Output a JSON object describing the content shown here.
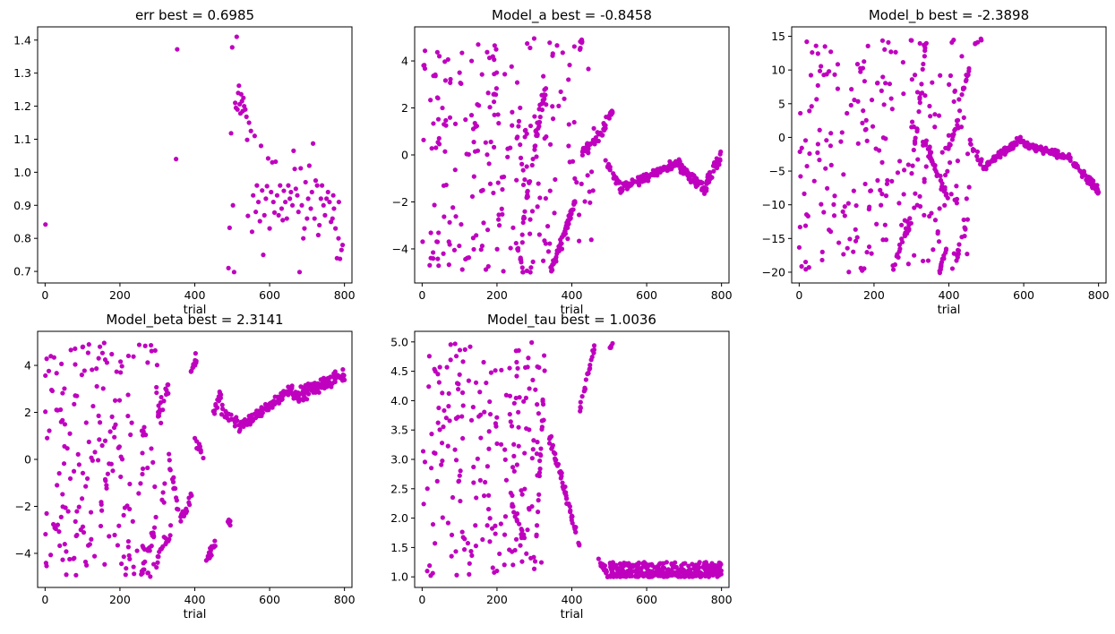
{
  "figure": {
    "marker_color": "#bf00bf",
    "panels": [
      {
        "title": "err  best = 0.6985",
        "xlabel": "trial",
        "ylabel": "",
        "xlim": [
          -20,
          820
        ],
        "ylim": [
          0.665,
          1.44
        ],
        "xticks": [
          0,
          200,
          400,
          600,
          800
        ],
        "yticks": [
          0.7,
          0.8,
          0.9,
          1.0,
          1.1,
          1.2,
          1.3,
          1.4
        ],
        "ytick_labels": [
          "0.7",
          "0.8",
          "0.9",
          "1.0",
          "1.1",
          "1.2",
          "1.3",
          "1.4"
        ]
      },
      {
        "title": "Model_a  best = -0.8458",
        "xlabel": "trial",
        "ylabel": "",
        "xlim": [
          -20,
          820
        ],
        "ylim": [
          -5.45,
          5.45
        ],
        "xticks": [
          0,
          200,
          400,
          600,
          800
        ],
        "yticks": [
          -4,
          -2,
          0,
          2,
          4
        ],
        "ytick_labels": [
          "−4",
          "−2",
          "0",
          "2",
          "4"
        ]
      },
      {
        "title": "Model_b  best = -2.3898",
        "xlabel": "trial",
        "ylabel": "",
        "xlim": [
          -20,
          820
        ],
        "ylim": [
          -21.6,
          16.4
        ],
        "xticks": [
          0,
          200,
          400,
          600,
          800
        ],
        "yticks": [
          -20,
          -15,
          -10,
          -5,
          0,
          5,
          10,
          15
        ],
        "ytick_labels": [
          "−20",
          "−15",
          "−10",
          "−5",
          "0",
          "5",
          "10",
          "15"
        ]
      },
      {
        "title": "Model_beta  best = 2.3141",
        "xlabel": "trial",
        "ylabel": "",
        "xlim": [
          -20,
          820
        ],
        "ylim": [
          -5.45,
          5.45
        ],
        "xticks": [
          0,
          200,
          400,
          600,
          800
        ],
        "yticks": [
          -4,
          -2,
          0,
          2,
          4
        ],
        "ytick_labels": [
          "−4",
          "−2",
          "0",
          "2",
          "4"
        ]
      },
      {
        "title": "Model_tau  best = 1.0036",
        "xlabel": "trial",
        "ylabel": "",
        "xlim": [
          -20,
          820
        ],
        "ylim": [
          0.82,
          5.18
        ],
        "xticks": [
          0,
          200,
          400,
          600,
          800
        ],
        "yticks": [
          1.0,
          1.5,
          2.0,
          2.5,
          3.0,
          3.5,
          4.0,
          4.5,
          5.0
        ],
        "ytick_labels": [
          "1.0",
          "1.5",
          "2.0",
          "2.5",
          "3.0",
          "3.5",
          "4.0",
          "4.5",
          "5.0"
        ]
      }
    ]
  },
  "chart_data": [
    {
      "type": "scatter",
      "title": "err  best = 0.6985",
      "xlabel": "trial",
      "ylabel": "",
      "xlim": [
        -20,
        820
      ],
      "ylim": [
        0.665,
        1.44
      ],
      "grid": false,
      "color": "#bf00bf",
      "points": [
        [
          1,
          0.842
        ],
        [
          350,
          1.04
        ],
        [
          353,
          1.372
        ],
        [
          490,
          0.71
        ],
        [
          493,
          0.832
        ],
        [
          497,
          1.118
        ],
        [
          500,
          1.378
        ],
        [
          502,
          0.9
        ],
        [
          505,
          0.698
        ],
        [
          508,
          1.21
        ],
        [
          510,
          1.195
        ],
        [
          512,
          1.41
        ],
        [
          514,
          1.19
        ],
        [
          516,
          1.24
        ],
        [
          518,
          1.262
        ],
        [
          520,
          1.206
        ],
        [
          522,
          1.178
        ],
        [
          524,
          1.236
        ],
        [
          526,
          1.215
        ],
        [
          528,
          1.185
        ],
        [
          530,
          1.225
        ],
        [
          532,
          1.2
        ],
        [
          535,
          1.19
        ],
        [
          538,
          1.168
        ],
        [
          540,
          1.098
        ],
        [
          542,
          0.868
        ],
        [
          545,
          1.15
        ],
        [
          550,
          1.125
        ],
        [
          553,
          0.82
        ],
        [
          556,
          0.93
        ],
        [
          560,
          1.11
        ],
        [
          563,
          0.88
        ],
        [
          566,
          0.96
        ],
        [
          570,
          0.91
        ],
        [
          574,
          0.852
        ],
        [
          577,
          1.08
        ],
        [
          580,
          0.945
        ],
        [
          583,
          0.75
        ],
        [
          586,
          0.87
        ],
        [
          590,
          0.92
        ],
        [
          593,
          0.958
        ],
        [
          596,
          1.042
        ],
        [
          600,
          0.83
        ],
        [
          604,
          0.94
        ],
        [
          607,
          1.03
        ],
        [
          610,
          0.91
        ],
        [
          613,
          0.878
        ],
        [
          616,
          1.032
        ],
        [
          620,
          0.93
        ],
        [
          624,
          0.87
        ],
        [
          628,
          0.96
        ],
        [
          632,
          0.89
        ],
        [
          635,
          0.855
        ],
        [
          638,
          0.944
        ],
        [
          642,
          0.91
        ],
        [
          646,
          0.86
        ],
        [
          650,
          0.96
        ],
        [
          654,
          0.92
        ],
        [
          657,
          0.94
        ],
        [
          661,
          0.9
        ],
        [
          664,
          1.065
        ],
        [
          667,
          1.01
        ],
        [
          670,
          0.95
        ],
        [
          674,
          0.93
        ],
        [
          677,
          0.88
        ],
        [
          680,
          0.698
        ],
        [
          683,
          1.012
        ],
        [
          686,
          0.9
        ],
        [
          690,
          0.8
        ],
        [
          693,
          0.83
        ],
        [
          696,
          0.97
        ],
        [
          700,
          0.86
        ],
        [
          703,
          0.92
        ],
        [
          706,
          1.02
        ],
        [
          710,
          0.89
        ],
        [
          713,
          0.94
        ],
        [
          716,
          1.087
        ],
        [
          720,
          0.86
        ],
        [
          723,
          0.975
        ],
        [
          727,
          0.96
        ],
        [
          730,
          0.81
        ],
        [
          733,
          0.84
        ],
        [
          737,
          0.92
        ],
        [
          740,
          0.96
        ],
        [
          744,
          0.9
        ],
        [
          748,
          0.87
        ],
        [
          752,
          0.92
        ],
        [
          756,
          0.94
        ],
        [
          760,
          0.91
        ],
        [
          764,
          0.85
        ],
        [
          768,
          0.86
        ],
        [
          772,
          0.89
        ],
        [
          776,
          0.83
        ],
        [
          780,
          0.74
        ],
        [
          784,
          0.8
        ],
        [
          788,
          0.738
        ],
        [
          792,
          0.765
        ],
        [
          795,
          0.78
        ],
        [
          785,
          0.91
        ],
        [
          770,
          0.93
        ]
      ]
    },
    {
      "type": "scatter",
      "title": "Model_a  best = -0.8458",
      "xlabel": "trial",
      "ylabel": "",
      "xlim": [
        -20,
        820
      ],
      "ylim": [
        -5.45,
        5.45
      ],
      "grid": false,
      "color": "#bf00bf",
      "generated": true,
      "segments": [
        {
          "x0": 0,
          "x1": 460,
          "kind": "uniform",
          "lo": -5,
          "hi": 5,
          "n": 230,
          "seed": 11
        },
        {
          "x0": 250,
          "x1": 270,
          "kind": "trend",
          "y0": -3.6,
          "y1": -4.9,
          "noise": 0.2,
          "n": 12,
          "seed": 12
        },
        {
          "x0": 265,
          "x1": 320,
          "kind": "trend",
          "y0": -3.4,
          "y1": 2.6,
          "noise": 0.3,
          "n": 28,
          "seed": 13
        },
        {
          "x0": 300,
          "x1": 335,
          "kind": "trend",
          "y0": 0.2,
          "y1": 3.4,
          "noise": 0.3,
          "n": 18,
          "seed": 14
        },
        {
          "x0": 345,
          "x1": 400,
          "kind": "trend",
          "y0": -4.9,
          "y1": -2.4,
          "noise": 0.25,
          "n": 40,
          "seed": 15
        },
        {
          "x0": 380,
          "x1": 410,
          "kind": "trend",
          "y0": -3.4,
          "y1": -1.8,
          "noise": 0.25,
          "n": 22,
          "seed": 16
        },
        {
          "x0": 420,
          "x1": 430,
          "kind": "trend",
          "y0": 4.4,
          "y1": 5.0,
          "noise": 0.1,
          "n": 6,
          "seed": 17
        },
        {
          "x0": 425,
          "x1": 490,
          "kind": "trend",
          "y0": 0.0,
          "y1": 1.1,
          "noise": 0.3,
          "n": 36,
          "seed": 18
        },
        {
          "x0": 485,
          "x1": 510,
          "kind": "trend",
          "y0": 1.3,
          "y1": 1.9,
          "noise": 0.2,
          "n": 14,
          "seed": 19
        },
        {
          "x0": 490,
          "x1": 530,
          "kind": "trend",
          "y0": -0.2,
          "y1": -1.4,
          "noise": 0.2,
          "n": 22,
          "seed": 20
        },
        {
          "x0": 530,
          "x1": 690,
          "kind": "trend",
          "y0": -1.4,
          "y1": -0.3,
          "noise": 0.25,
          "n": 110,
          "seed": 21
        },
        {
          "x0": 690,
          "x1": 760,
          "kind": "trend",
          "y0": -0.5,
          "y1": -1.5,
          "noise": 0.3,
          "n": 60,
          "seed": 22
        },
        {
          "x0": 760,
          "x1": 800,
          "kind": "trend",
          "y0": -1.2,
          "y1": 0.0,
          "noise": 0.3,
          "n": 40,
          "seed": 23
        }
      ]
    },
    {
      "type": "scatter",
      "title": "Model_b  best = -2.3898",
      "xlabel": "trial",
      "ylabel": "",
      "xlim": [
        -20,
        820
      ],
      "ylim": [
        -21.6,
        16.4
      ],
      "grid": false,
      "color": "#bf00bf",
      "generated": true,
      "segments": [
        {
          "x0": 0,
          "x1": 460,
          "kind": "uniform",
          "lo": -20,
          "hi": 15,
          "n": 230,
          "seed": 31
        },
        {
          "x0": 250,
          "x1": 300,
          "kind": "trend",
          "y0": -19.5,
          "y1": -12,
          "noise": 1.2,
          "n": 24,
          "seed": 32
        },
        {
          "x0": 300,
          "x1": 340,
          "kind": "trend",
          "y0": -6,
          "y1": 14.5,
          "noise": 1.2,
          "n": 22,
          "seed": 33
        },
        {
          "x0": 330,
          "x1": 395,
          "kind": "trend",
          "y0": 0,
          "y1": -9,
          "noise": 1.2,
          "n": 40,
          "seed": 34
        },
        {
          "x0": 375,
          "x1": 395,
          "kind": "trend",
          "y0": -20,
          "y1": -16,
          "noise": 0.7,
          "n": 16,
          "seed": 35
        },
        {
          "x0": 420,
          "x1": 445,
          "kind": "trend",
          "y0": -18,
          "y1": -13.5,
          "noise": 0.8,
          "n": 14,
          "seed": 36
        },
        {
          "x0": 395,
          "x1": 425,
          "kind": "trend",
          "y0": -3,
          "y1": 3,
          "noise": 1.0,
          "n": 14,
          "seed": 37
        },
        {
          "x0": 425,
          "x1": 455,
          "kind": "trend",
          "y0": 5,
          "y1": 10,
          "noise": 0.8,
          "n": 14,
          "seed": 38
        },
        {
          "x0": 470,
          "x1": 490,
          "kind": "trend",
          "y0": 13.8,
          "y1": 14.6,
          "noise": 0.3,
          "n": 6,
          "seed": 39
        },
        {
          "x0": 455,
          "x1": 500,
          "kind": "trend",
          "y0": -0.5,
          "y1": -5,
          "noise": 0.8,
          "n": 24,
          "seed": 40
        },
        {
          "x0": 500,
          "x1": 600,
          "kind": "trend",
          "y0": -4,
          "y1": 0,
          "noise": 0.7,
          "n": 70,
          "seed": 41
        },
        {
          "x0": 600,
          "x1": 720,
          "kind": "trend",
          "y0": -1,
          "y1": -3,
          "noise": 0.6,
          "n": 90,
          "seed": 42
        },
        {
          "x0": 720,
          "x1": 800,
          "kind": "trend",
          "y0": -3,
          "y1": -8,
          "noise": 0.8,
          "n": 60,
          "seed": 43
        }
      ]
    },
    {
      "type": "scatter",
      "title": "Model_beta  best = 2.3141",
      "xlabel": "trial",
      "ylabel": "",
      "xlim": [
        -20,
        820
      ],
      "ylim": [
        -5.45,
        5.45
      ],
      "grid": false,
      "color": "#bf00bf",
      "generated": true,
      "segments": [
        {
          "x0": 0,
          "x1": 320,
          "kind": "uniform",
          "lo": -5,
          "hi": 5,
          "n": 200,
          "seed": 51
        },
        {
          "x0": 255,
          "x1": 300,
          "kind": "trend",
          "y0": -5,
          "y1": -2.5,
          "noise": 0.4,
          "n": 20,
          "seed": 52
        },
        {
          "x0": 300,
          "x1": 330,
          "kind": "trend",
          "y0": 1.8,
          "y1": 3.0,
          "noise": 0.4,
          "n": 18,
          "seed": 53
        },
        {
          "x0": 290,
          "x1": 340,
          "kind": "trend",
          "y0": -4.6,
          "y1": -2.8,
          "noise": 0.4,
          "n": 18,
          "seed": 54
        },
        {
          "x0": 330,
          "x1": 360,
          "kind": "trend",
          "y0": 0.2,
          "y1": -2.5,
          "noise": 0.4,
          "n": 14,
          "seed": 55
        },
        {
          "x0": 360,
          "x1": 395,
          "kind": "trend",
          "y0": -2.6,
          "y1": -1.5,
          "noise": 0.3,
          "n": 18,
          "seed": 56
        },
        {
          "x0": 385,
          "x1": 410,
          "kind": "trend",
          "y0": 3.5,
          "y1": 4.6,
          "noise": 0.3,
          "n": 14,
          "seed": 57
        },
        {
          "x0": 400,
          "x1": 430,
          "kind": "trend",
          "y0": 0.8,
          "y1": -0.2,
          "noise": 0.3,
          "n": 12,
          "seed": 58
        },
        {
          "x0": 430,
          "x1": 460,
          "kind": "trend",
          "y0": -4.3,
          "y1": -3.4,
          "noise": 0.3,
          "n": 16,
          "seed": 59
        },
        {
          "x0": 445,
          "x1": 470,
          "kind": "trend",
          "y0": 1.8,
          "y1": 2.8,
          "noise": 0.3,
          "n": 14,
          "seed": 60
        },
        {
          "x0": 480,
          "x1": 500,
          "kind": "trend",
          "y0": -2.8,
          "y1": -2.6,
          "noise": 0.2,
          "n": 6,
          "seed": 61
        },
        {
          "x0": 470,
          "x1": 520,
          "kind": "trend",
          "y0": 2.2,
          "y1": 1.4,
          "noise": 0.3,
          "n": 20,
          "seed": 62
        },
        {
          "x0": 520,
          "x1": 660,
          "kind": "trend",
          "y0": 1.4,
          "y1": 3.0,
          "noise": 0.25,
          "n": 110,
          "seed": 63
        },
        {
          "x0": 660,
          "x1": 800,
          "kind": "trend",
          "y0": 2.6,
          "y1": 3.6,
          "noise": 0.35,
          "n": 110,
          "seed": 64
        }
      ]
    },
    {
      "type": "scatter",
      "title": "Model_tau  best = 1.0036",
      "xlabel": "trial",
      "ylabel": "",
      "xlim": [
        -20,
        820
      ],
      "ylim": [
        0.82,
        5.18
      ],
      "grid": false,
      "color": "#bf00bf",
      "generated": true,
      "segments": [
        {
          "x0": 0,
          "x1": 330,
          "kind": "uniform",
          "lo": 1.0,
          "hi": 5.0,
          "n": 200,
          "seed": 71
        },
        {
          "x0": 240,
          "x1": 280,
          "kind": "trend",
          "y0": 2.3,
          "y1": 1.4,
          "noise": 0.15,
          "n": 16,
          "seed": 72
        },
        {
          "x0": 300,
          "x1": 330,
          "kind": "trend",
          "y0": 1.0,
          "y1": 4.8,
          "noise": 0.2,
          "n": 20,
          "seed": 73
        },
        {
          "x0": 340,
          "x1": 375,
          "kind": "trend",
          "y0": 3.4,
          "y1": 2.6,
          "noise": 0.15,
          "n": 26,
          "seed": 74
        },
        {
          "x0": 375,
          "x1": 420,
          "kind": "trend",
          "y0": 2.6,
          "y1": 1.55,
          "noise": 0.12,
          "n": 30,
          "seed": 75
        },
        {
          "x0": 420,
          "x1": 460,
          "kind": "trend",
          "y0": 3.8,
          "y1": 4.9,
          "noise": 0.12,
          "n": 24,
          "seed": 76
        },
        {
          "x0": 500,
          "x1": 510,
          "kind": "trend",
          "y0": 4.85,
          "y1": 5.0,
          "noise": 0.05,
          "n": 5,
          "seed": 77
        },
        {
          "x0": 470,
          "x1": 500,
          "kind": "trend",
          "y0": 1.3,
          "y1": 1.0,
          "noise": 0.08,
          "n": 20,
          "seed": 78
        },
        {
          "x0": 500,
          "x1": 800,
          "kind": "band",
          "lo": 1.0,
          "hi": 1.25,
          "n": 340,
          "seed": 79
        }
      ]
    }
  ]
}
